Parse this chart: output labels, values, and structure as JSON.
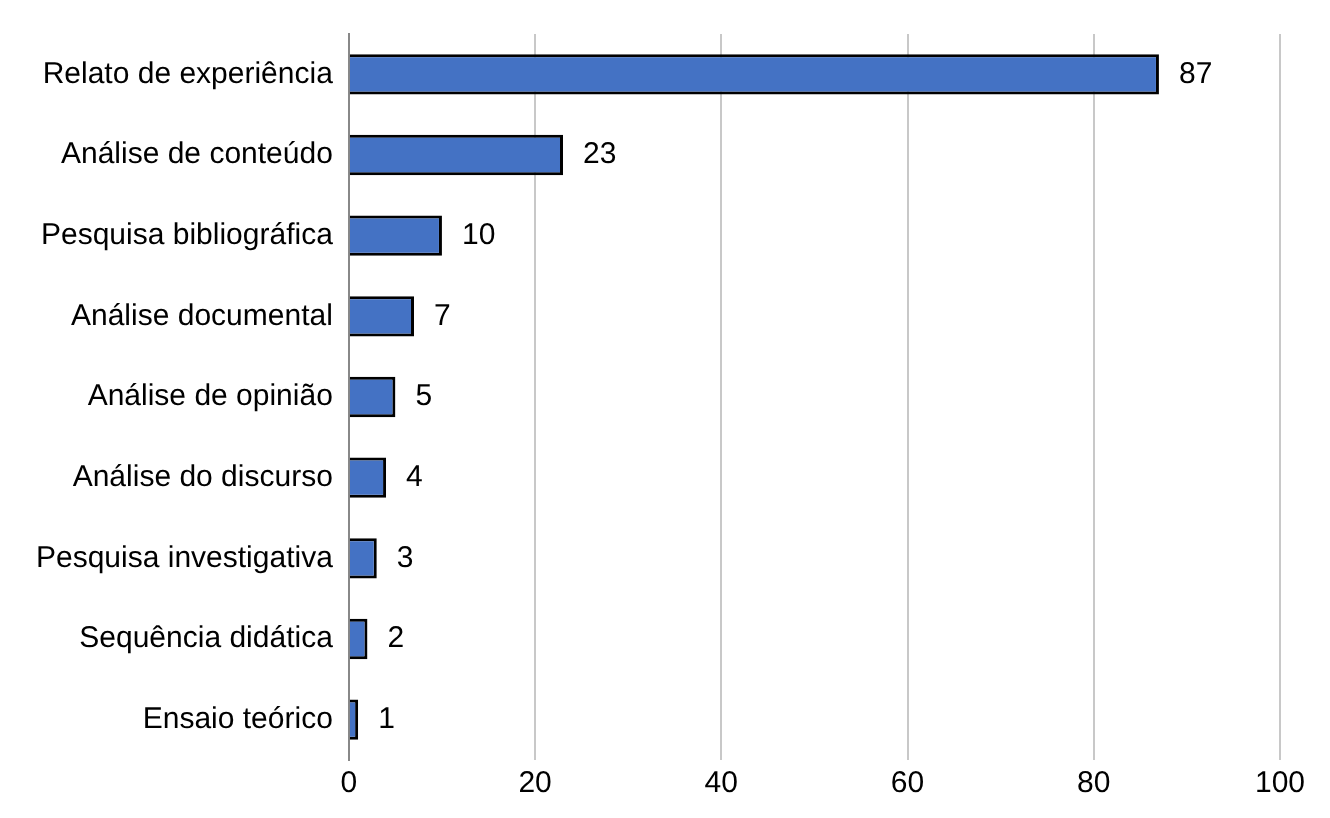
{
  "chart_data": {
    "type": "bar",
    "orientation": "horizontal",
    "categories": [
      "Relato de experiência",
      "Análise de conteúdo",
      "Pesquisa bibliográfica",
      "Análise documental",
      "Análise de opinião",
      "Análise do discurso",
      "Pesquisa investigativa",
      "Sequência didática",
      "Ensaio teórico"
    ],
    "values": [
      87,
      23,
      10,
      7,
      5,
      4,
      3,
      2,
      1
    ],
    "color": "#4472c4",
    "xlim": [
      0,
      100
    ],
    "xticks": [
      0,
      20,
      40,
      60,
      80,
      100
    ],
    "grid": "x",
    "data_labels": true
  }
}
